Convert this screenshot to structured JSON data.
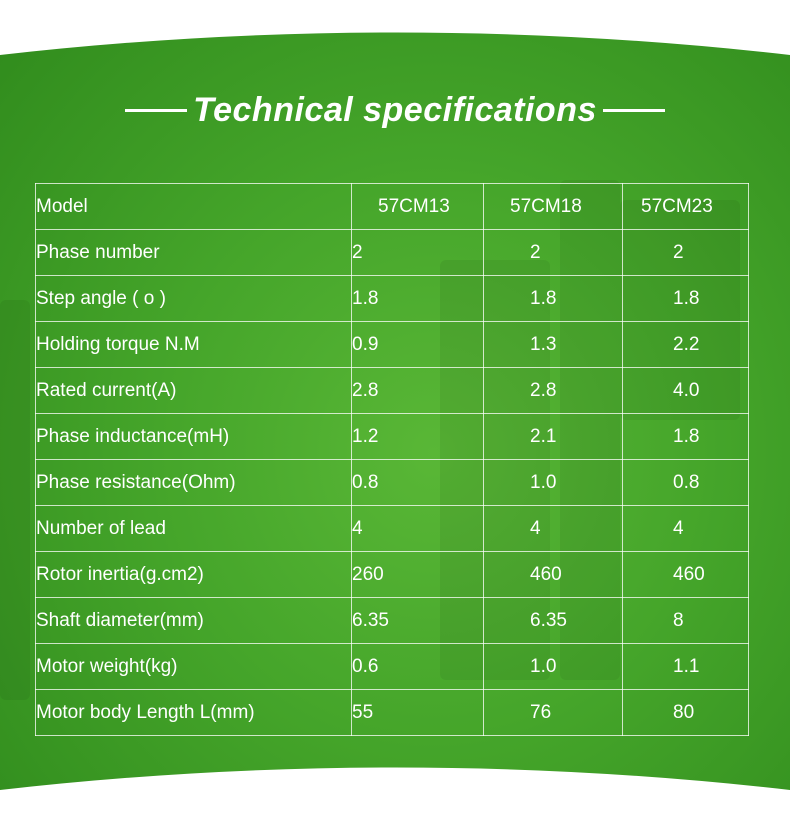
{
  "title": "Technical specifications",
  "header": {
    "label": "Model",
    "models": [
      "57CM13",
      "57CM18",
      "57CM23"
    ]
  },
  "rows": [
    {
      "label": "Phase number",
      "values": [
        "2",
        "2",
        "2"
      ]
    },
    {
      "label": "Step angle ( o )",
      "values": [
        "1.8",
        "1.8",
        "1.8"
      ]
    },
    {
      "label": "Holding torque N.M",
      "values": [
        "0.9",
        "1.3",
        "2.2"
      ]
    },
    {
      "label": "Rated current(A)",
      "values": [
        "2.8",
        "2.8",
        "4.0"
      ]
    },
    {
      "label": "Phase inductance(mH)",
      "values": [
        "1.2",
        "2.1",
        "1.8"
      ]
    },
    {
      "label": "Phase resistance(Ohm)",
      "values": [
        "0.8",
        "1.0",
        "0.8"
      ]
    },
    {
      "label": "Number of lead",
      "values": [
        "4",
        "4",
        "4"
      ]
    },
    {
      "label": "Rotor inertia(g.cm2)",
      "values": [
        "260",
        "460",
        "460"
      ]
    },
    {
      "label": "Shaft diameter(mm)",
      "values": [
        "6.35",
        "6.35",
        "8"
      ]
    },
    {
      "label": "Motor weight(kg)",
      "values": [
        "0.6",
        "1.0",
        "1.1"
      ]
    },
    {
      "label": "Motor body Length L(mm)",
      "values": [
        "55",
        "76",
        "80"
      ]
    }
  ],
  "colors": {
    "background_green": "#45a52a",
    "text": "#ffffff",
    "grid_line": "#ffffff"
  }
}
